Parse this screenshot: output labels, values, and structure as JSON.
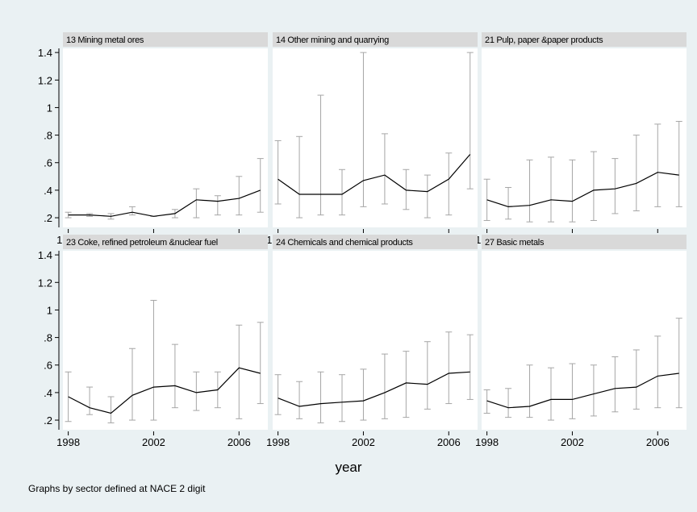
{
  "chart_data": {
    "type": "line",
    "xlabel": "year",
    "note": "Graphs by sector defined at NACE 2 digit",
    "x": [
      1998,
      1999,
      2000,
      2001,
      2002,
      2003,
      2004,
      2005,
      2006,
      2007
    ],
    "xticks": [
      1998,
      2002,
      2006
    ],
    "yticks": [
      0.2,
      0.4,
      0.6,
      0.8,
      1,
      1.2,
      1.4
    ],
    "ytick_labels": [
      ".2",
      ".4",
      ".6",
      ".8",
      "1",
      "1.2",
      "1.4"
    ],
    "ylim": [
      0.13,
      1.43
    ],
    "xlim": [
      1997.75,
      2007.35
    ],
    "grid": false,
    "panels": [
      {
        "title": "13 Mining metal ores",
        "mean": [
          0.22,
          0.22,
          0.21,
          0.24,
          0.21,
          0.23,
          0.33,
          0.32,
          0.34,
          0.4
        ],
        "low": [
          0.2,
          0.21,
          0.19,
          0.22,
          0.21,
          0.2,
          0.2,
          0.22,
          0.22,
          0.24
        ],
        "high": [
          0.24,
          0.23,
          0.23,
          0.28,
          0.21,
          0.26,
          0.41,
          0.36,
          0.5,
          0.63
        ]
      },
      {
        "title": "14 Other mining and quarrying",
        "mean": [
          0.48,
          0.37,
          0.37,
          0.37,
          0.47,
          0.51,
          0.4,
          0.39,
          0.48,
          0.66
        ],
        "low": [
          0.3,
          0.2,
          0.22,
          0.22,
          0.28,
          0.3,
          0.26,
          0.2,
          0.22,
          0.41
        ],
        "high": [
          0.76,
          0.79,
          1.09,
          0.55,
          1.4,
          0.81,
          0.55,
          0.51,
          0.67,
          1.4
        ]
      },
      {
        "title": "21 Pulp, paper &paper products",
        "mean": [
          0.33,
          0.28,
          0.29,
          0.33,
          0.32,
          0.4,
          0.41,
          0.45,
          0.53,
          0.51
        ],
        "low": [
          0.18,
          0.19,
          0.17,
          0.17,
          0.17,
          0.18,
          0.23,
          0.25,
          0.28,
          0.28
        ],
        "high": [
          0.48,
          0.42,
          0.62,
          0.64,
          0.62,
          0.68,
          0.63,
          0.8,
          0.88,
          0.9
        ]
      },
      {
        "title": "23 Coke, refined petroleum &nuclear fuel",
        "mean": [
          0.37,
          0.29,
          0.25,
          0.38,
          0.44,
          0.45,
          0.4,
          0.42,
          0.58,
          0.54
        ],
        "low": [
          0.19,
          0.24,
          0.18,
          0.2,
          0.2,
          0.29,
          0.27,
          0.29,
          0.21,
          0.32
        ],
        "high": [
          0.55,
          0.44,
          0.37,
          0.72,
          1.07,
          0.75,
          0.55,
          0.55,
          0.89,
          0.91
        ]
      },
      {
        "title": "24 Chemicals and chemical products",
        "mean": [
          0.36,
          0.3,
          0.32,
          0.33,
          0.34,
          0.4,
          0.47,
          0.46,
          0.54,
          0.55
        ],
        "low": [
          0.24,
          0.21,
          0.18,
          0.19,
          0.2,
          0.21,
          0.22,
          0.28,
          0.32,
          0.35
        ],
        "high": [
          0.53,
          0.48,
          0.55,
          0.53,
          0.57,
          0.68,
          0.7,
          0.77,
          0.84,
          0.82
        ]
      },
      {
        "title": "27 Basic metals",
        "mean": [
          0.34,
          0.29,
          0.3,
          0.35,
          0.35,
          0.39,
          0.43,
          0.44,
          0.52,
          0.54
        ],
        "low": [
          0.25,
          0.22,
          0.22,
          0.2,
          0.21,
          0.23,
          0.26,
          0.28,
          0.29,
          0.29
        ],
        "high": [
          0.42,
          0.43,
          0.6,
          0.58,
          0.61,
          0.6,
          0.66,
          0.71,
          0.81,
          0.94
        ]
      }
    ]
  }
}
